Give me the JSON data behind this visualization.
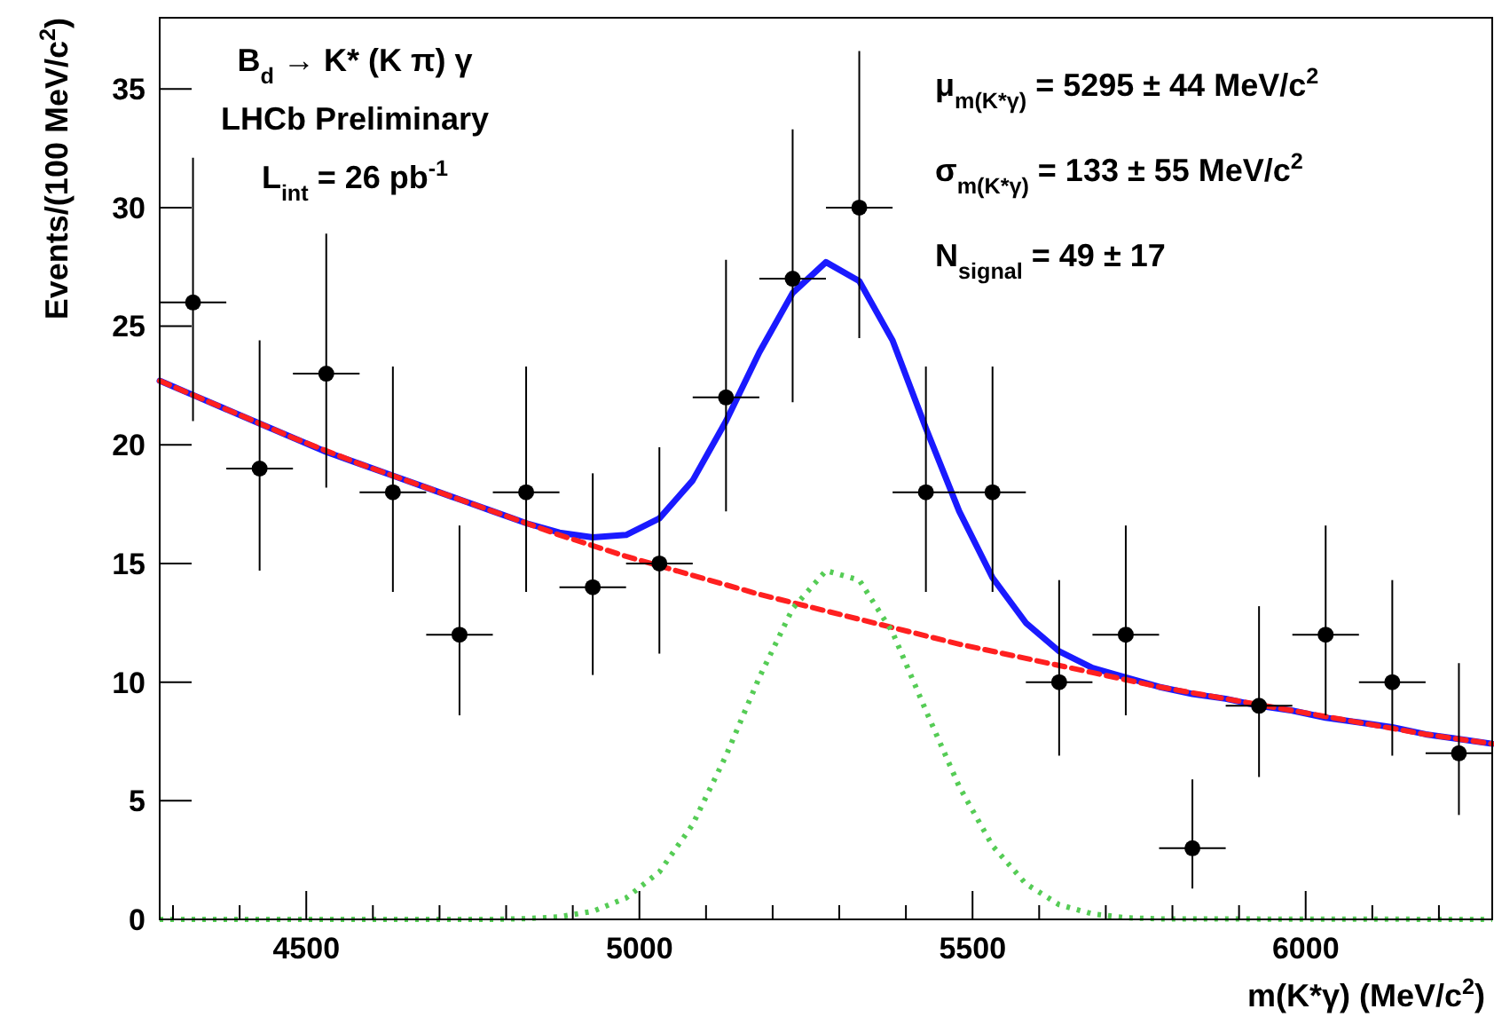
{
  "chart_data": {
    "type": "scatter",
    "xlabel": "m(K*γ) (MeV/c$^{2}$)",
    "ylabel": "Events/(100 MeV/c$^{2}$)",
    "annotations": [
      "B$_{d}$ → K* (K π) γ",
      "LHCb Preliminary",
      "L$_{int}$ = 26 pb$^{-1}$",
      "μ$_{m(K*γ)}$ = 5295 ± 44 MeV/c$^{2}$",
      "σ$_{m(K*γ)}$ = 133 ± 55 MeV/c$^{2}$",
      "N$_{signal}$ = 49 ± 17"
    ],
    "xlim": [
      4280,
      6280
    ],
    "ylim": [
      0,
      38
    ],
    "xticks": [
      {
        "value": 4300,
        "label": null
      },
      {
        "value": 4400,
        "label": null
      },
      4500,
      {
        "value": 4600,
        "label": null
      },
      {
        "value": 4700,
        "label": null
      },
      {
        "value": 4800,
        "label": null
      },
      {
        "value": 4900,
        "label": null
      },
      5000,
      {
        "value": 5100,
        "label": null
      },
      {
        "value": 5200,
        "label": null
      },
      {
        "value": 5300,
        "label": null
      },
      {
        "value": 5400,
        "label": null
      },
      5500,
      {
        "value": 5600,
        "label": null
      },
      {
        "value": 5700,
        "label": null
      },
      {
        "value": 5800,
        "label": null
      },
      {
        "value": 5900,
        "label": null
      },
      6000,
      {
        "value": 6100,
        "label": null
      },
      {
        "value": 6200,
        "label": null
      }
    ],
    "yticks": [
      0,
      5,
      10,
      15,
      20,
      25,
      30,
      35
    ],
    "grid": false,
    "series": [
      {
        "type": "line",
        "color": "#1a1aff",
        "line_style": "solid",
        "marker": "none",
        "x": [
          4280,
          4330,
          4380,
          4430,
          4480,
          4530,
          4580,
          4630,
          4680,
          4730,
          4780,
          4830,
          4880,
          4930,
          4980,
          5030,
          5080,
          5130,
          5180,
          5230,
          5280,
          5330,
          5380,
          5430,
          5480,
          5530,
          5580,
          5630,
          5680,
          5730,
          5780,
          5830,
          5880,
          5930,
          5980,
          6030,
          6080,
          6130,
          6180,
          6230,
          6280
        ],
        "values": [
          22.7,
          22.1,
          21.5,
          20.9,
          20.3,
          19.7,
          19.2,
          18.7,
          18.2,
          17.7,
          17.2,
          16.7,
          16.3,
          16.1,
          16.2,
          16.9,
          18.5,
          21.0,
          23.9,
          26.4,
          27.7,
          26.9,
          24.4,
          20.7,
          17.2,
          14.4,
          12.5,
          11.3,
          10.6,
          10.2,
          9.8,
          9.5,
          9.3,
          9.0,
          8.8,
          8.5,
          8.3,
          8.1,
          7.8,
          7.6,
          7.4
        ]
      },
      {
        "type": "line",
        "color": "#ff2020",
        "line_style": "dashed",
        "marker": "none",
        "x": [
          4280,
          4380,
          4480,
          4580,
          4680,
          4780,
          4880,
          4980,
          5080,
          5180,
          5280,
          5380,
          5480,
          5580,
          5680,
          5780,
          5880,
          5980,
          6080,
          6180,
          6280
        ],
        "values": [
          22.7,
          21.5,
          20.3,
          19.2,
          18.2,
          17.2,
          16.2,
          15.3,
          14.5,
          13.7,
          13.0,
          12.3,
          11.6,
          11.0,
          10.4,
          9.8,
          9.3,
          8.8,
          8.3,
          7.8,
          7.4
        ]
      },
      {
        "type": "line",
        "color": "#55cc55",
        "line_style": "dotted",
        "marker": "none",
        "x": [
          4280,
          4780,
          4830,
          4880,
          4930,
          4980,
          5030,
          5080,
          5130,
          5180,
          5230,
          5280,
          5330,
          5380,
          5430,
          5480,
          5530,
          5580,
          5630,
          5680,
          5730,
          5780,
          6280
        ],
        "values": [
          0,
          0,
          0.03,
          0.11,
          0.34,
          0.9,
          2.0,
          4.0,
          6.9,
          10.2,
          13.1,
          14.7,
          14.3,
          12.1,
          8.8,
          5.6,
          3.1,
          1.5,
          0.62,
          0.23,
          0.07,
          0.02,
          0
        ]
      },
      {
        "color": "#000000",
        "marker": "circle",
        "x": [
          4330,
          4430,
          4530,
          4630,
          4730,
          4830,
          4930,
          5030,
          5130,
          5230,
          5330,
          5430,
          5530,
          5630,
          5730,
          5830,
          5930,
          6030,
          6130,
          6230
        ],
        "values": [
          26,
          19,
          23,
          18,
          12,
          18,
          14,
          15,
          22,
          27,
          30,
          18,
          18,
          10,
          12,
          3,
          9,
          12,
          10,
          7
        ],
        "errors": [
          [
            21,
            32.1
          ],
          [
            14.7,
            24.4
          ],
          [
            18.2,
            28.9
          ],
          [
            13.8,
            23.3
          ],
          [
            8.6,
            16.6
          ],
          [
            13.8,
            23.3
          ],
          [
            10.3,
            18.8
          ],
          [
            11.2,
            19.9
          ],
          [
            17.2,
            27.8
          ],
          [
            21.8,
            33.3
          ],
          [
            24.5,
            36.6
          ],
          [
            13.8,
            23.3
          ],
          [
            13.8,
            23.3
          ],
          [
            6.9,
            14.3
          ],
          [
            8.6,
            16.6
          ],
          [
            1.3,
            5.9
          ],
          [
            6,
            13.2
          ],
          [
            8.6,
            16.6
          ],
          [
            6.9,
            14.3
          ],
          [
            4.4,
            10.8
          ]
        ],
        "xerrors": [
          50,
          50,
          50,
          50,
          50,
          50,
          50,
          50,
          50,
          50,
          50,
          50,
          50,
          50,
          50,
          50,
          50,
          50,
          50,
          50
        ]
      }
    ]
  }
}
